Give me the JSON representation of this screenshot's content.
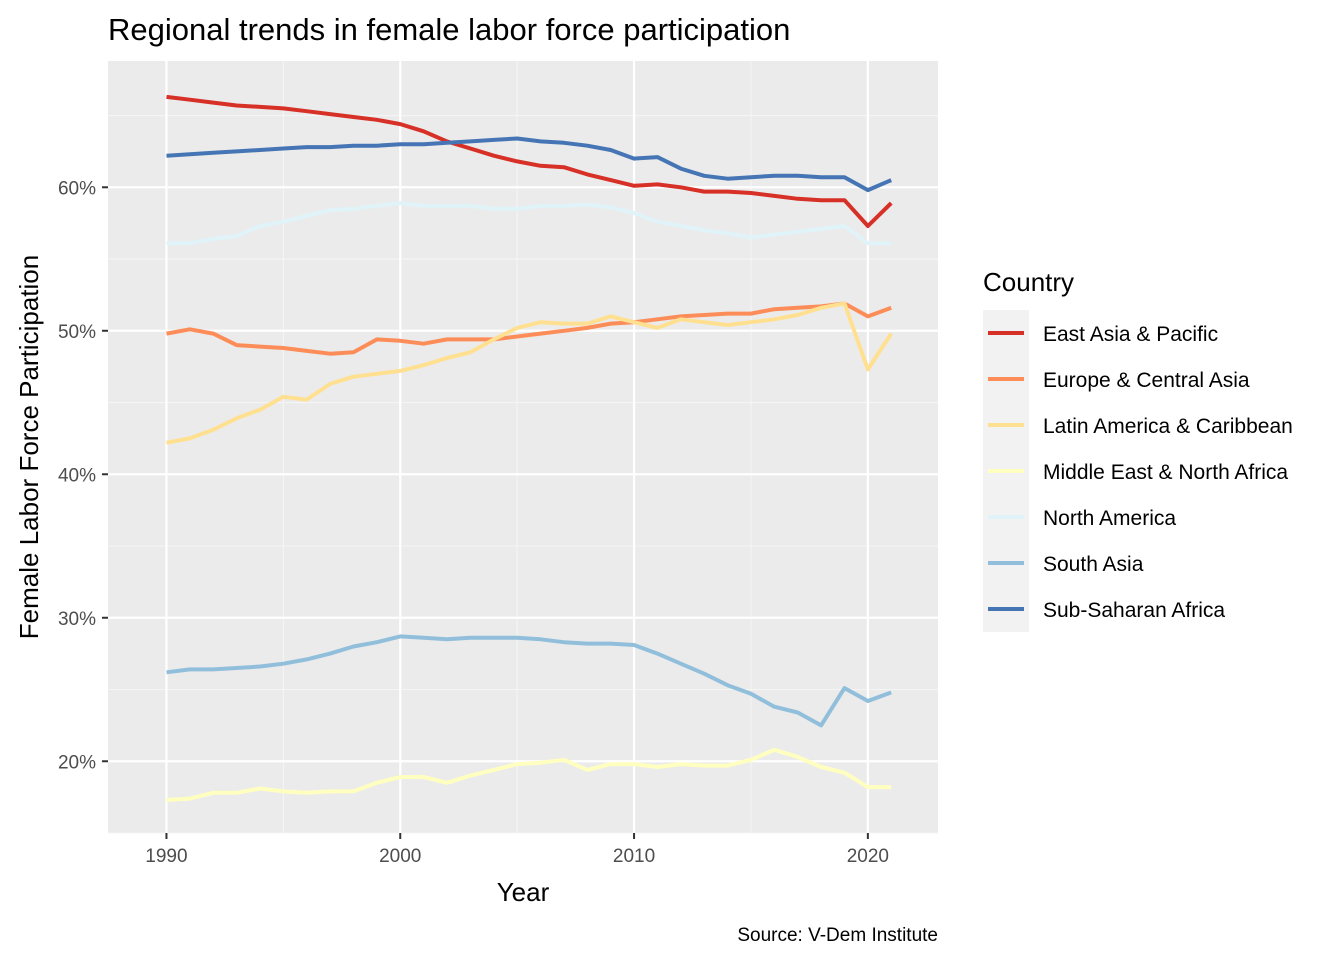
{
  "chart_data": {
    "type": "line",
    "title": "Regional trends in female labor force participation",
    "xlabel": "Year",
    "ylabel": "Female Labor Force Participation",
    "caption": "Source: V-Dem Institute",
    "legend_title": "Country",
    "legend_position": "right",
    "grid": true,
    "xlim": [
      1987.5,
      2023.0
    ],
    "ylim": [
      15.0,
      68.8
    ],
    "x_ticks": [
      1990,
      2000,
      2010,
      2020
    ],
    "x_tick_labels": [
      "1990",
      "2000",
      "2010",
      "2020"
    ],
    "y_ticks": [
      20,
      30,
      40,
      50,
      60
    ],
    "y_tick_labels": [
      "20%",
      "30%",
      "40%",
      "50%",
      "60%"
    ],
    "x": [
      1990,
      1991,
      1992,
      1993,
      1994,
      1995,
      1996,
      1997,
      1998,
      1999,
      2000,
      2001,
      2002,
      2003,
      2004,
      2005,
      2006,
      2007,
      2008,
      2009,
      2010,
      2011,
      2012,
      2013,
      2014,
      2015,
      2016,
      2017,
      2018,
      2019,
      2020,
      2021
    ],
    "series": [
      {
        "name": "East Asia & Pacific",
        "color": "#d73027",
        "values": [
          66.3,
          66.1,
          65.9,
          65.7,
          65.6,
          65.5,
          65.3,
          65.1,
          64.9,
          64.7,
          64.4,
          63.9,
          63.2,
          62.7,
          62.2,
          61.8,
          61.5,
          61.4,
          60.9,
          60.5,
          60.1,
          60.2,
          60.0,
          59.7,
          59.7,
          59.6,
          59.4,
          59.2,
          59.1,
          59.1,
          57.3,
          58.9
        ]
      },
      {
        "name": "Europe & Central Asia",
        "color": "#fc8d59",
        "values": [
          49.8,
          50.1,
          49.8,
          49.0,
          48.9,
          48.8,
          48.6,
          48.4,
          48.5,
          49.4,
          49.3,
          49.1,
          49.4,
          49.4,
          49.4,
          49.6,
          49.8,
          50.0,
          50.2,
          50.5,
          50.6,
          50.8,
          51.0,
          51.1,
          51.2,
          51.2,
          51.5,
          51.6,
          51.7,
          51.9,
          51.0,
          51.6
        ]
      },
      {
        "name": "Latin America & Caribbean",
        "color": "#fee090",
        "values": [
          42.2,
          42.5,
          43.1,
          43.9,
          44.5,
          45.4,
          45.2,
          46.3,
          46.8,
          47.0,
          47.2,
          47.6,
          48.1,
          48.5,
          49.4,
          50.2,
          50.6,
          50.5,
          50.5,
          51.0,
          50.6,
          50.2,
          50.8,
          50.6,
          50.4,
          50.6,
          50.8,
          51.1,
          51.6,
          51.9,
          47.3,
          49.8
        ]
      },
      {
        "name": "Middle East & North Africa",
        "color": "#ffffbf",
        "values": [
          17.3,
          17.4,
          17.8,
          17.8,
          18.1,
          17.9,
          17.8,
          17.9,
          17.9,
          18.5,
          18.9,
          18.9,
          18.5,
          19.0,
          19.4,
          19.8,
          19.9,
          20.1,
          19.4,
          19.8,
          19.8,
          19.6,
          19.8,
          19.7,
          19.7,
          20.1,
          20.8,
          20.3,
          19.6,
          19.2,
          18.2,
          18.2
        ]
      },
      {
        "name": "North America",
        "color": "#e0f3f8",
        "values": [
          56.1,
          56.1,
          56.4,
          56.6,
          57.3,
          57.6,
          58.0,
          58.4,
          58.5,
          58.7,
          58.9,
          58.7,
          58.7,
          58.7,
          58.5,
          58.5,
          58.7,
          58.7,
          58.8,
          58.6,
          58.2,
          57.6,
          57.3,
          57.0,
          56.8,
          56.5,
          56.7,
          56.9,
          57.1,
          57.3,
          56.1,
          56.1
        ]
      },
      {
        "name": "South Asia",
        "color": "#91bfdb",
        "values": [
          26.2,
          26.4,
          26.4,
          26.5,
          26.6,
          26.8,
          27.1,
          27.5,
          28.0,
          28.3,
          28.7,
          28.6,
          28.5,
          28.6,
          28.6,
          28.6,
          28.5,
          28.3,
          28.2,
          28.2,
          28.1,
          27.5,
          26.8,
          26.1,
          25.3,
          24.7,
          23.8,
          23.4,
          22.5,
          25.1,
          24.2,
          24.8
        ]
      },
      {
        "name": "Sub-Saharan Africa",
        "color": "#4575b4",
        "values": [
          62.2,
          62.3,
          62.4,
          62.5,
          62.6,
          62.7,
          62.8,
          62.8,
          62.9,
          62.9,
          63.0,
          63.0,
          63.1,
          63.2,
          63.3,
          63.4,
          63.2,
          63.1,
          62.9,
          62.6,
          62.0,
          62.1,
          61.3,
          60.8,
          60.6,
          60.7,
          60.8,
          60.8,
          60.7,
          60.7,
          59.8,
          60.5
        ]
      }
    ]
  }
}
